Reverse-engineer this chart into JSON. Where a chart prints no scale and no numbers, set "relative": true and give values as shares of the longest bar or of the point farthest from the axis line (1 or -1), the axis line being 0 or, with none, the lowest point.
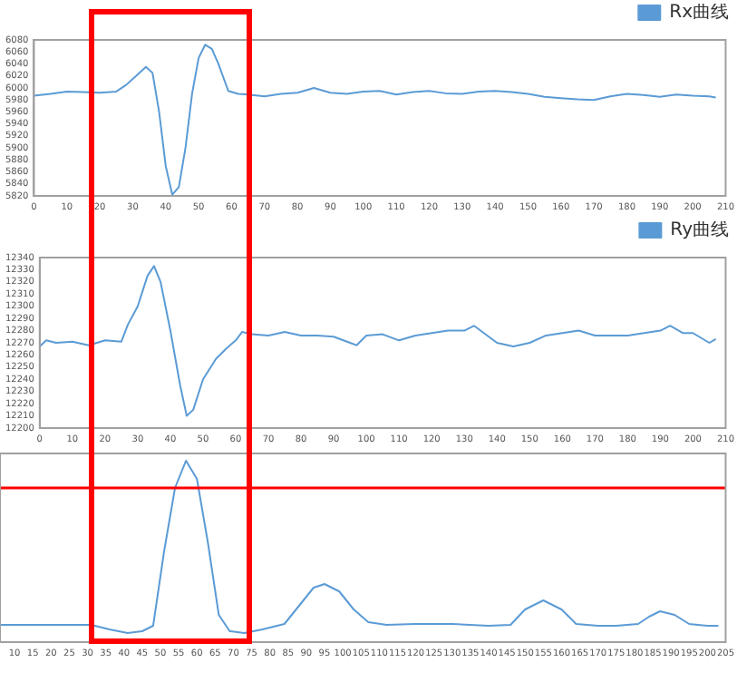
{
  "chart_data": [
    {
      "type": "line",
      "legend": "top right",
      "grid": false,
      "marker": "none",
      "line_style": "solid",
      "series": [
        {
          "name": "Rx曲线",
          "color": "#5b9bd5",
          "x": [
            0,
            5,
            10,
            15,
            20,
            25,
            28,
            31,
            34,
            36,
            38,
            40,
            42,
            44,
            46,
            48,
            50,
            52,
            54,
            56,
            59,
            62,
            65,
            70,
            75,
            80,
            85,
            90,
            95,
            100,
            105,
            110,
            115,
            120,
            125,
            130,
            135,
            140,
            145,
            150,
            155,
            160,
            165,
            170,
            175,
            180,
            185,
            190,
            195,
            200,
            205,
            207
          ],
          "values": [
            5987,
            5990,
            5994,
            5993,
            5992,
            5994,
            6005,
            6020,
            6035,
            6025,
            5960,
            5870,
            5822,
            5835,
            5900,
            5990,
            6050,
            6072,
            6065,
            6040,
            5995,
            5990,
            5989,
            5986,
            5990,
            5992,
            6000,
            5992,
            5990,
            5994,
            5995,
            5989,
            5993,
            5995,
            5991,
            5990,
            5994,
            5995,
            5993,
            5990,
            5985,
            5983,
            5981,
            5980,
            5986,
            5990,
            5988,
            5985,
            5989,
            5987,
            5986,
            5984
          ]
        }
      ],
      "xlim": [
        0,
        210
      ],
      "xticks": [
        0,
        10,
        20,
        30,
        40,
        50,
        60,
        70,
        80,
        90,
        100,
        110,
        120,
        130,
        140,
        150,
        160,
        170,
        180,
        190,
        200,
        210
      ],
      "ylim": [
        5820,
        6080
      ],
      "yticks": [
        5820,
        5840,
        5860,
        5880,
        5900,
        5920,
        5940,
        5960,
        5980,
        6000,
        6020,
        6040,
        6060,
        6080
      ]
    },
    {
      "type": "line",
      "legend": "top right",
      "grid": false,
      "marker": "none",
      "line_style": "solid",
      "series": [
        {
          "name": "Ry曲线",
          "color": "#5b9bd5",
          "x": [
            0,
            2,
            5,
            10,
            15,
            20,
            25,
            27,
            30,
            33,
            35,
            37,
            40,
            43,
            45,
            47,
            50,
            54,
            57,
            60,
            62,
            65,
            70,
            75,
            80,
            85,
            90,
            95,
            97,
            100,
            105,
            110,
            115,
            120,
            125,
            130,
            133,
            137,
            140,
            145,
            150,
            155,
            160,
            165,
            170,
            175,
            180,
            185,
            190,
            193,
            197,
            200,
            205,
            207
          ],
          "values": [
            12267,
            12272,
            12270,
            12271,
            12268,
            12272,
            12271,
            12285,
            12300,
            12325,
            12333,
            12320,
            12280,
            12235,
            12210,
            12215,
            12240,
            12257,
            12265,
            12272,
            12279,
            12277,
            12276,
            12279,
            12276,
            12276,
            12275,
            12270,
            12268,
            12276,
            12277,
            12272,
            12276,
            12278,
            12280,
            12280,
            12284,
            12276,
            12270,
            12267,
            12270,
            12276,
            12278,
            12280,
            12276,
            12276,
            12276,
            12278,
            12280,
            12284,
            12278,
            12278,
            12270,
            12273
          ]
        }
      ],
      "xlim": [
        0,
        210
      ],
      "xticks": [
        0,
        10,
        20,
        30,
        40,
        50,
        60,
        70,
        80,
        90,
        100,
        110,
        120,
        130,
        140,
        150,
        160,
        170,
        180,
        190,
        200,
        210
      ],
      "ylim": [
        12200,
        12340
      ],
      "yticks": [
        12200,
        12210,
        12220,
        12230,
        12240,
        12250,
        12260,
        12270,
        12280,
        12290,
        12300,
        12310,
        12320,
        12330,
        12340
      ]
    },
    {
      "type": "line",
      "relative": true,
      "grid": false,
      "marker": "none",
      "line_style": "solid",
      "series": [
        {
          "color": "#5b9bd5",
          "x": [
            6,
            10,
            20,
            31,
            36,
            41,
            45,
            48,
            51,
            54,
            57,
            60,
            63,
            66,
            69,
            73,
            78,
            84,
            88,
            92,
            95,
            99,
            103,
            107,
            112,
            120,
            130,
            140,
            146,
            150,
            155,
            160,
            164,
            170,
            175,
            181,
            184,
            187,
            191,
            195,
            200,
            203
          ],
          "values": [
            0.095,
            0.095,
            0.095,
            0.095,
            0.07,
            0.05,
            0.06,
            0.09,
            0.5,
            0.85,
            1,
            0.9,
            0.55,
            0.15,
            0.06,
            0.05,
            0.07,
            0.1,
            0.2,
            0.3,
            0.32,
            0.28,
            0.18,
            0.11,
            0.095,
            0.1,
            0.1,
            0.09,
            0.095,
            0.18,
            0.23,
            0.18,
            0.1,
            0.09,
            0.09,
            0.1,
            0.14,
            0.17,
            0.15,
            0.1,
            0.09,
            0.09
          ]
        }
      ],
      "xlim": [
        6,
        205
      ],
      "xticks": [
        10,
        15,
        20,
        25,
        30,
        35,
        40,
        45,
        50,
        55,
        60,
        65,
        70,
        75,
        80,
        85,
        90,
        95,
        100,
        105,
        110,
        115,
        120,
        125,
        130,
        135,
        140,
        145,
        150,
        155,
        160,
        165,
        170,
        175,
        180,
        185,
        190,
        195,
        200,
        205
      ],
      "ref_lines": [
        {
          "axis": "y",
          "value": 0.85,
          "color": "#ff0000"
        }
      ]
    }
  ]
}
